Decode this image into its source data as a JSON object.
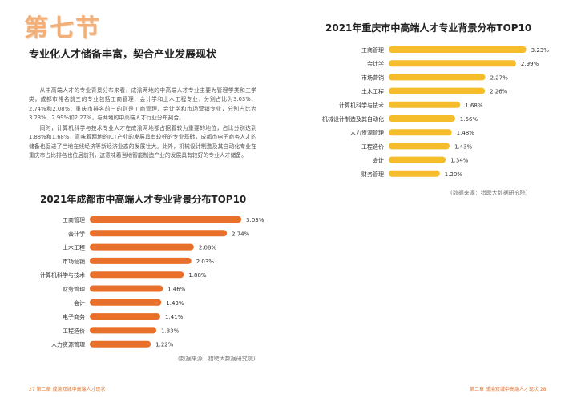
{
  "chapter": {
    "title": "第七节"
  },
  "section": {
    "heading": "专业化人才储备丰富，契合产业发展现状"
  },
  "body": {
    "paragraph1": "从中高端人才的专业背景分布来看，成渝两地的中高端人才专业主要为管理学类和工学类，成都市排名前三的专业包括工商管理、会计学和土木工程专业，分别占比为3.03%、2.74%和2.08%；重庆市排名前三的则是工商管理、会计学和市场营销专业，分别占比为3.23%、2.99%和2.27%，与两地的中高端人才行业分布契合。",
    "paragraph2": "同时，计算机科学与技术专业人才在成渝两地都占据着较为重要的地位，占比分别达到1.88%和1.68%，意味着两地的ICT产业的发展具有较好的专业基础，成都市电子商务人才的储备也促进了当地在线经济等新经济业态的发展壮大。此外，机械设计制造及其自动化专业在重庆市占比排名也位居前列，这意味着当地智能制造产业的发展具有较好的专业人才储备。"
  },
  "colors": {
    "accent_orange": "#e8702a",
    "accent_yellow": "#f5bc2c",
    "chapter_title": "#f1b079"
  },
  "footer": {
    "left": "27  第二章  成渝双城中高端人才现状",
    "right": "第二章  成渝双城中高端人才现状  28"
  },
  "chart_data": [
    {
      "type": "bar",
      "orientation": "horizontal",
      "title": "2021年重庆市中高端人才专业背景分布TOP10",
      "categories": [
        "工商管理",
        "会计学",
        "市场营销",
        "土木工程",
        "计算机科学与技术",
        "机械设计制造及其自动化",
        "人力资源管理",
        "工程造价",
        "会计",
        "财务管理"
      ],
      "values": [
        3.23,
        2.99,
        2.27,
        2.26,
        1.68,
        1.56,
        1.48,
        1.43,
        1.34,
        1.2
      ],
      "data_labels": [
        "3.23%",
        "2.99%",
        "2.27%",
        "2.26%",
        "1.68%",
        "1.56%",
        "1.48%",
        "1.43%",
        "1.34%",
        "1.20%"
      ],
      "xlim": [
        0,
        3.5
      ],
      "color": "#f5bc2c",
      "source": "(数据来源：猎聘大数据研究院)"
    },
    {
      "type": "bar",
      "orientation": "horizontal",
      "title": "2021年成都市中高端人才专业背景分布TOP10",
      "categories": [
        "工商管理",
        "会计学",
        "土木工程",
        "市场营销",
        "计算机科学与技术",
        "财务管理",
        "会计",
        "电子商务",
        "工程造价",
        "人力资源管理"
      ],
      "values": [
        3.03,
        2.74,
        2.08,
        2.03,
        1.88,
        1.46,
        1.43,
        1.41,
        1.33,
        1.22
      ],
      "data_labels": [
        "3.03%",
        "2.74%",
        "2.08%",
        "2.03%",
        "1.88%",
        "1.46%",
        "1.43%",
        "1.41%",
        "1.33%",
        "1.22%"
      ],
      "xlim": [
        0,
        3.3
      ],
      "color": "#e8702a",
      "source": "(数据来源：猎聘大数据研究院)"
    }
  ]
}
